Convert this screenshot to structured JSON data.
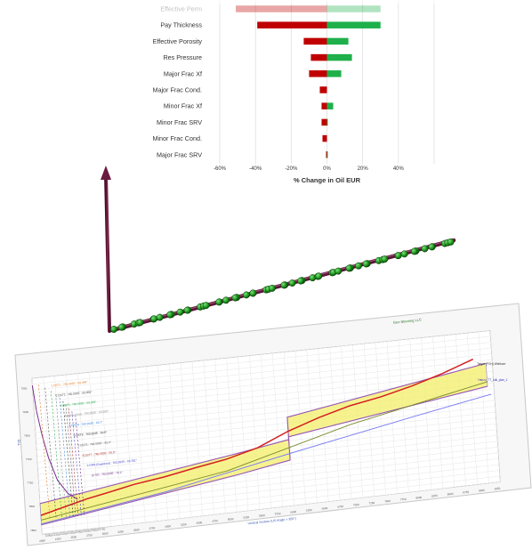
{
  "chart_data": [
    {
      "type": "bar",
      "orientation": "horizontal",
      "title": "",
      "xlabel": "% Change in Oil EUR",
      "ylabel": "",
      "xlim": [
        -60,
        60
      ],
      "x_ticks": [
        "-60%",
        "-40%",
        "-20%",
        "0%",
        "20%",
        "40%"
      ],
      "grid": true,
      "categories": [
        "Effective Perm",
        "Pay Thickness",
        "Effective Porosity",
        "Res Pressure",
        "Major Frac Xf",
        "Major Frac Cond.",
        "Minor Frac Xf",
        "Minor Frac SRV",
        "Minor Frac Cond.",
        "Major Frac SRV"
      ],
      "series": [
        {
          "name": "",
          "color": "#c00000",
          "values": [
            -51,
            -39,
            -13,
            -9,
            -10,
            -4,
            -3,
            -3,
            -2.5,
            -0.5
          ]
        },
        {
          "name": "",
          "color": "#1fb04b",
          "values": [
            30,
            30,
            12,
            14,
            8,
            0,
            3.5,
            0.5,
            0,
            0.5
          ]
        }
      ]
    },
    {
      "type": "line",
      "title": "",
      "xlabel": "Vertical Section (US Angle = 350°)",
      "ylabel": "TVD",
      "label_header": "Geo Steering LLC",
      "formation_labels": [
        "1 DST1 : 760.9935' : 69.496°",
        "2 DST2 : 760.9935' : 69.855°",
        "3 DST3 : 760.9935' : 69.555°",
        "4 Isolde Hudy : 760.9935' : 69.555°",
        "5 DSTR : 760.9935' : 69.7°",
        "6 DSTS : 760.9935' : 69.5°",
        "7 DST6 : 760.9935' : 69.4°",
        "8 DST7 : 760.9935' : 69.5°",
        "9 GRN (Eagleford) : 760.9935' : 69.781°",
        "10 SD : 760.9935' : 70.1°"
      ],
      "legend_entries": [
        "Target (PGH) Wellbore",
        "Hanzo_TT_odk_plan_1"
      ],
      "marker_labels": [
        "12000",
        "12100",
        "12200",
        "12300",
        "12400",
        "12500",
        "12600",
        "12700"
      ],
      "x_ticks": [
        "2000",
        "2250",
        "2500",
        "2750",
        "3000",
        "3250",
        "3500",
        "3750",
        "4000",
        "4250",
        "4500",
        "4750",
        "5000",
        "5250",
        "5500",
        "5750",
        "6000",
        "6250",
        "6500",
        "6750",
        "7000",
        "7250",
        "7500",
        "7750",
        "8000",
        "8250",
        "8500",
        "8750",
        "9000",
        "9250"
      ],
      "y_ticks": [
        "7550",
        "7600",
        "7650",
        "7700",
        "7750",
        "7800",
        "7850"
      ],
      "series": [
        {
          "name": "Target (PGH) Wellbore",
          "color": "#d42020",
          "x": [
            2000,
            2250,
            2500,
            2750,
            3000,
            3500,
            4000,
            4500,
            5000,
            5500,
            6000,
            6500,
            7000,
            7500,
            8000,
            8500,
            9000
          ],
          "y": [
            7820,
            7812,
            7804,
            7796,
            7790,
            7777,
            7768,
            7756,
            7745,
            7728,
            7700,
            7678,
            7660,
            7648,
            7632,
            7612,
            7588
          ]
        },
        {
          "name": "Hanzo_TT_odk_plan_1",
          "color": "#7b7ef2",
          "x": [
            2000,
            4000,
            6000,
            8000,
            9250
          ],
          "y": [
            7838,
            7800,
            7748,
            7698,
            7668
          ]
        },
        {
          "name": "",
          "color": "#7a2e8a",
          "x": [
            2000,
            2040,
            2100,
            2180,
            2300,
            2450,
            2600
          ],
          "y": [
            7545,
            7600,
            7650,
            7700,
            7750,
            7780,
            7795
          ]
        }
      ]
    }
  ],
  "well_3d_caption": "Geo Steering LLC"
}
